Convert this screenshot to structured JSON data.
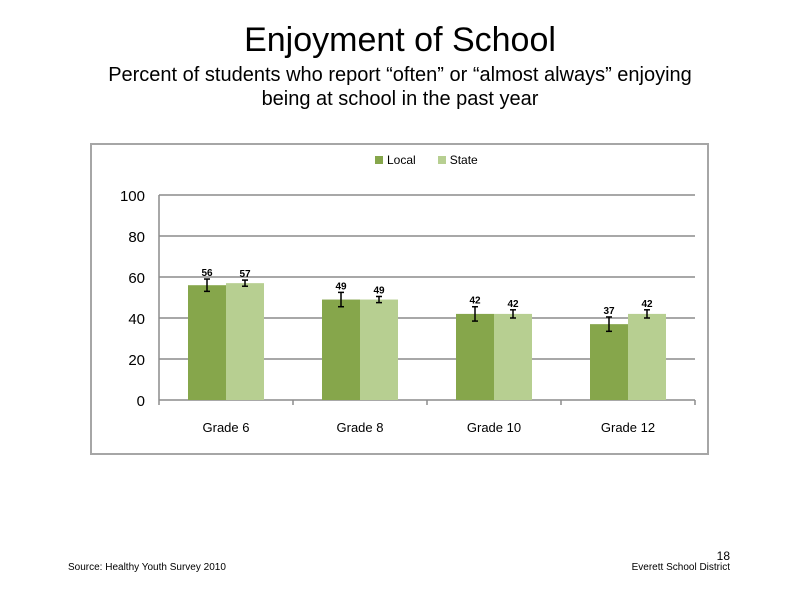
{
  "title": "Enjoyment of School",
  "subtitle_line1": "Percent of students who report “often” or “almost always” enjoying",
  "subtitle_line2": "being at school in the past year",
  "footer": {
    "source": "Source: Healthy Youth Survey 2010",
    "district": "Everett School District",
    "page_number": "18"
  },
  "colors": {
    "local": "#86a64b",
    "state": "#b7cf91",
    "grid": "#8c8c8c"
  },
  "chart_data": {
    "type": "bar",
    "categories": [
      "Grade 6",
      "Grade 8",
      "Grade 10",
      "Grade 12"
    ],
    "series": [
      {
        "name": "Local",
        "values": [
          56,
          49,
          42,
          37
        ],
        "error": [
          3,
          3.5,
          3.5,
          3.5
        ]
      },
      {
        "name": "State",
        "values": [
          57,
          49,
          42,
          42
        ],
        "error": [
          1.5,
          1.5,
          2,
          2
        ]
      }
    ],
    "ylim": [
      0,
      100
    ],
    "yticks": [
      0,
      20,
      40,
      60,
      80,
      100
    ],
    "legend": "top",
    "grid": true
  }
}
